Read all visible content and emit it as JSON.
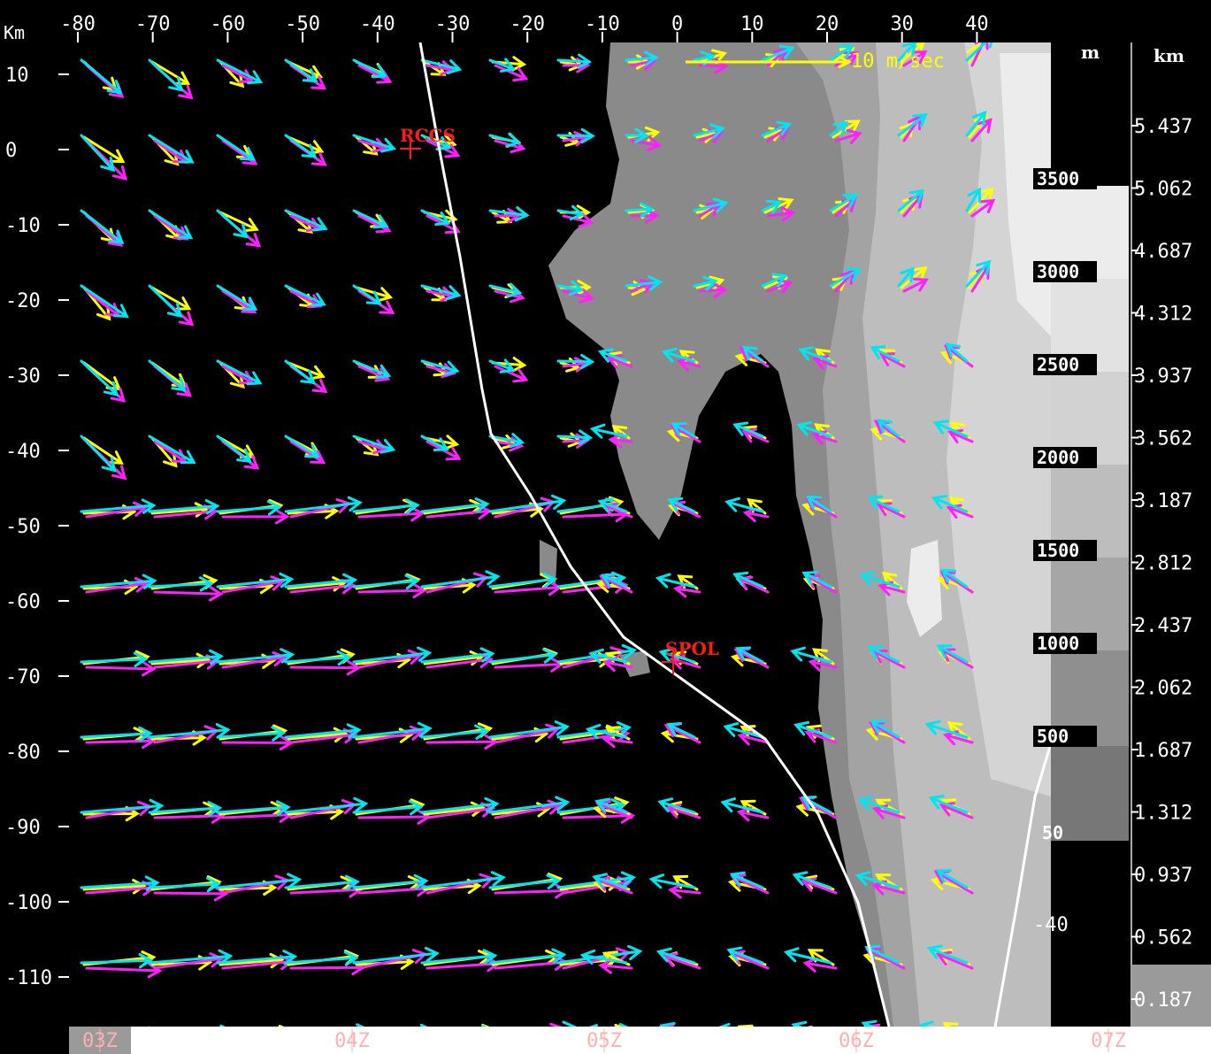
{
  "map": {
    "axis_unit_top_left": "Km",
    "x_ticks": [
      "-80",
      "-70",
      "-60",
      "-50",
      "-40",
      "-30",
      "-20",
      "-10",
      "0",
      "10",
      "20",
      "30",
      "40"
    ],
    "y_ticks": [
      "10",
      "0",
      "-10",
      "-20",
      "-30",
      "-40",
      "-50",
      "-60",
      "-70",
      "-80",
      "-90",
      "-100",
      "-110"
    ],
    "scale_label": "10 m/sec",
    "sites": [
      {
        "name": "RCCS"
      },
      {
        "name": "SPOL"
      }
    ],
    "vector_colors": {
      "series_a": "#00e5f0",
      "series_b": "#ff20ff",
      "series_c": "#ffff00"
    }
  },
  "terrain_legend": {
    "unit": "m",
    "levels": [
      "3500",
      "3000",
      "2500",
      "2000",
      "1500",
      "1000",
      "500",
      "50"
    ]
  },
  "cross_section_labels": {
    "value_50": "50",
    "value_neg40": "-40"
  },
  "height_legend": {
    "unit": "km",
    "levels": [
      "5.437",
      "5.062",
      "4.687",
      "4.312",
      "3.937",
      "3.562",
      "3.187",
      "2.812",
      "2.437",
      "2.062",
      "1.687",
      "1.312",
      "0.937",
      "0.562",
      "0.187"
    ]
  },
  "time_axis": {
    "labels": [
      "03Z",
      "04Z",
      "05Z",
      "06Z",
      "07Z"
    ]
  }
}
